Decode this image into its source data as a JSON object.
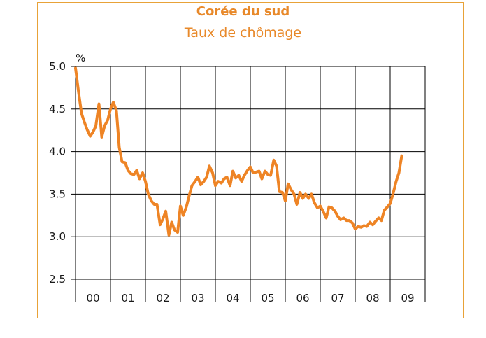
{
  "chart_data": {
    "type": "line",
    "title": "Corée du sud",
    "subtitle": "Taux de chômage",
    "ylabel": "%",
    "xlabel": "",
    "ylim": [
      2.5,
      5.0
    ],
    "yticks": [
      "5.0",
      "4.5",
      "4.0",
      "3.5",
      "3.0",
      "2.5"
    ],
    "categories": [
      "00",
      "01",
      "02",
      "03",
      "04",
      "05",
      "06",
      "07",
      "08",
      "09"
    ],
    "x_range": [
      2000.0,
      2010.0
    ],
    "grid": true,
    "legend": "none",
    "line_color": "#ee8425",
    "series": [
      {
        "x": [
          2000.0,
          2000.08,
          2000.17,
          2000.25,
          2000.33,
          2000.42,
          2000.5,
          2000.58,
          2000.67,
          2000.75,
          2000.83,
          2000.92,
          2001.0,
          2001.08,
          2001.17,
          2001.25,
          2001.33,
          2001.42,
          2001.5,
          2001.58,
          2001.67,
          2001.75,
          2001.83,
          2001.92,
          2002.0,
          2002.08,
          2002.17,
          2002.25,
          2002.33,
          2002.42,
          2002.5,
          2002.58,
          2002.67,
          2002.75,
          2002.83,
          2002.92,
          2003.0,
          2003.08,
          2003.17,
          2003.25,
          2003.33,
          2003.42,
          2003.5,
          2003.58,
          2003.67,
          2003.75,
          2003.83,
          2003.92,
          2004.0,
          2004.08,
          2004.17,
          2004.25,
          2004.33,
          2004.42,
          2004.5,
          2004.58,
          2004.67,
          2004.75,
          2004.83,
          2004.92,
          2005.0,
          2005.08,
          2005.17,
          2005.25,
          2005.33,
          2005.42,
          2005.5,
          2005.58,
          2005.67,
          2005.75,
          2005.83,
          2005.92,
          2006.0,
          2006.08,
          2006.17,
          2006.25,
          2006.33,
          2006.42,
          2006.5,
          2006.58,
          2006.67,
          2006.75,
          2006.83,
          2006.92,
          2007.0,
          2007.08,
          2007.17,
          2007.25,
          2007.33,
          2007.42,
          2007.5,
          2007.58,
          2007.67,
          2007.75,
          2007.83,
          2007.92,
          2008.0,
          2008.08,
          2008.17,
          2008.25,
          2008.33,
          2008.42,
          2008.5,
          2008.58,
          2008.67,
          2008.75,
          2008.83,
          2008.92,
          2009.0,
          2009.08,
          2009.17,
          2009.25,
          2009.33
        ],
        "values": [
          4.98,
          4.72,
          4.45,
          4.35,
          4.26,
          4.18,
          4.23,
          4.3,
          4.56,
          4.17,
          4.3,
          4.37,
          4.5,
          4.58,
          4.48,
          4.05,
          3.88,
          3.87,
          3.78,
          3.74,
          3.73,
          3.78,
          3.68,
          3.75,
          3.65,
          3.5,
          3.42,
          3.38,
          3.38,
          3.14,
          3.21,
          3.3,
          3.02,
          3.17,
          3.08,
          3.05,
          3.36,
          3.25,
          3.35,
          3.48,
          3.6,
          3.65,
          3.7,
          3.61,
          3.65,
          3.7,
          3.83,
          3.75,
          3.6,
          3.65,
          3.63,
          3.68,
          3.7,
          3.6,
          3.77,
          3.69,
          3.72,
          3.65,
          3.72,
          3.78,
          3.82,
          3.75,
          3.76,
          3.77,
          3.68,
          3.77,
          3.73,
          3.72,
          3.9,
          3.83,
          3.53,
          3.52,
          3.42,
          3.62,
          3.55,
          3.5,
          3.38,
          3.52,
          3.45,
          3.5,
          3.45,
          3.5,
          3.4,
          3.34,
          3.36,
          3.3,
          3.22,
          3.35,
          3.34,
          3.3,
          3.24,
          3.2,
          3.22,
          3.19,
          3.19,
          3.16,
          3.09,
          3.12,
          3.11,
          3.13,
          3.12,
          3.17,
          3.14,
          3.18,
          3.22,
          3.19,
          3.31,
          3.35,
          3.39,
          3.5,
          3.65,
          3.75,
          3.95
        ]
      }
    ]
  }
}
